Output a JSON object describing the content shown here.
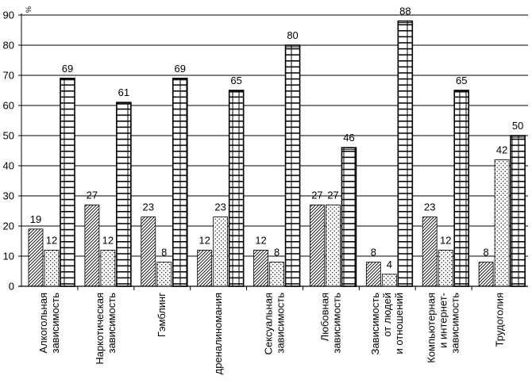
{
  "chart_data": {
    "type": "bar",
    "title": "",
    "xlabel": "",
    "ylabel": "",
    "y_unit_mark": "%",
    "ylim": [
      0,
      90
    ],
    "yticks": [
      0,
      10,
      20,
      30,
      40,
      50,
      60,
      70,
      80,
      90
    ],
    "grid": "horizontal",
    "legend": "none",
    "categories": [
      [
        "Алкогольная",
        "зависимость"
      ],
      [
        "Наркотическая",
        "зависимость"
      ],
      [
        "Гэмблинг"
      ],
      [
        "дреналиномания"
      ],
      [
        "Сексуальная",
        "зависимость"
      ],
      [
        "Любовная",
        "зависимость"
      ],
      [
        "Зависимость",
        "от людей",
        "и отношений"
      ],
      [
        "Компьютерная",
        "и интернет-",
        "зависимость"
      ],
      [
        "Трудоголия"
      ]
    ],
    "series": [
      {
        "pattern": "diagonal-hatch",
        "values": [
          19,
          27,
          23,
          12,
          12,
          27,
          8,
          23,
          8
        ]
      },
      {
        "pattern": "dotted",
        "values": [
          12,
          12,
          8,
          23,
          8,
          27,
          4,
          12,
          42
        ]
      },
      {
        "pattern": "grid",
        "values": [
          69,
          61,
          69,
          65,
          80,
          46,
          88,
          65,
          50
        ]
      }
    ]
  }
}
